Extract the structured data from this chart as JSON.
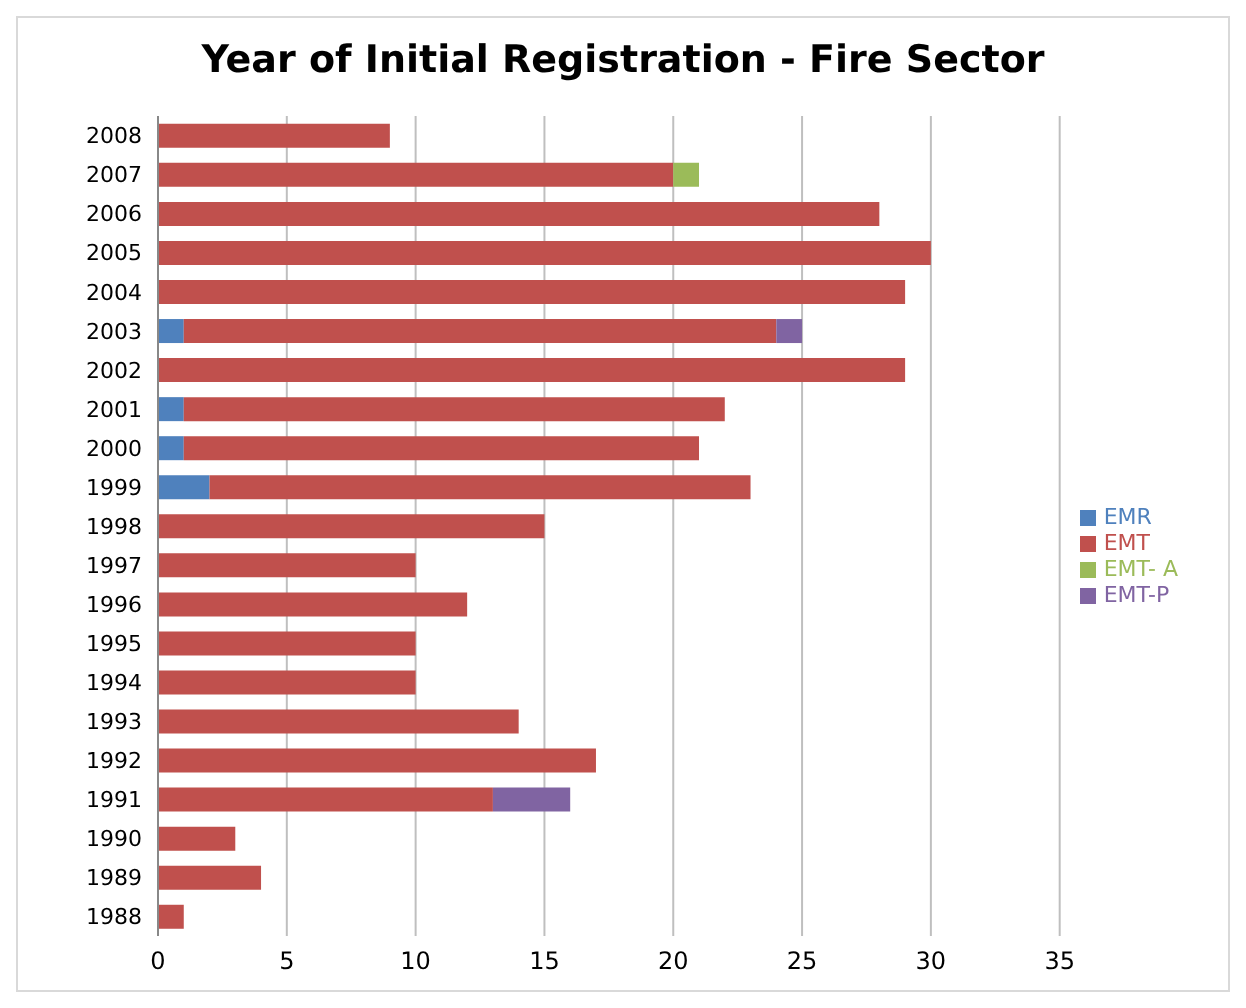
{
  "chart_data": {
    "type": "bar",
    "title": "Year of Initial Registration - Fire Sector",
    "orientation": "horizontal",
    "stacked": true,
    "categories": [
      "2008",
      "2007",
      "2006",
      "2005",
      "2004",
      "2003",
      "2002",
      "2001",
      "2000",
      "1999",
      "1998",
      "1997",
      "1996",
      "1995",
      "1994",
      "1993",
      "1992",
      "1991",
      "1990",
      "1989",
      "1988"
    ],
    "series": [
      {
        "name": "EMR",
        "color": "#4f81bd",
        "values": [
          null,
          null,
          null,
          null,
          null,
          1,
          null,
          1,
          1,
          2,
          null,
          null,
          null,
          null,
          null,
          null,
          null,
          null,
          null,
          null,
          null
        ]
      },
      {
        "name": "EMT",
        "color": "#c0504d",
        "values": [
          9,
          20,
          28,
          30,
          29,
          23,
          29,
          21,
          20,
          21,
          15,
          10,
          12,
          10,
          10,
          14,
          17,
          13,
          3,
          4,
          1
        ]
      },
      {
        "name": "EMT- A",
        "color": "#9bbb59",
        "values": [
          null,
          1,
          null,
          null,
          null,
          null,
          null,
          null,
          null,
          null,
          null,
          null,
          null,
          null,
          null,
          null,
          null,
          null,
          null,
          null,
          null
        ]
      },
      {
        "name": "EMT-P",
        "color": "#8064a2",
        "values": [
          null,
          null,
          null,
          null,
          null,
          1,
          null,
          null,
          null,
          null,
          null,
          null,
          null,
          null,
          null,
          null,
          null,
          3,
          null,
          null,
          null
        ]
      }
    ],
    "xlim": [
      0,
      35
    ],
    "xticks": [
      0,
      5,
      10,
      15,
      20,
      25,
      30,
      35
    ],
    "grid": "x",
    "legend": "right"
  }
}
